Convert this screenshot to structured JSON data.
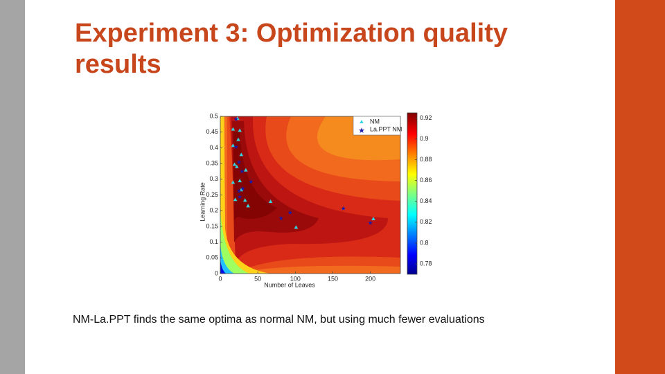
{
  "title": "Experiment 3: Optimization quality results",
  "caption": "NM-La.PPT finds the same optima as normal NM, but using much fewer evaluations",
  "chart_data": {
    "type": "scatter",
    "xlabel": "Number of Leaves",
    "ylabel": "Learning Rate",
    "xlim": [
      0,
      240
    ],
    "ylim": [
      0,
      0.5
    ],
    "xticks": [
      0,
      50,
      100,
      150,
      200
    ],
    "yticks": [
      0,
      0.05,
      0.1,
      0.15,
      0.2,
      0.25,
      0.3,
      0.35,
      0.4,
      0.45,
      0.5
    ],
    "legend": "top-right",
    "series": [
      {
        "name": "NM",
        "color": "#33d6e0",
        "marker": "triangle",
        "x": [
          23,
          17,
          26,
          24,
          17,
          28,
          19,
          22,
          34,
          17,
          26,
          28,
          20,
          33,
          37,
          67,
          101,
          204
        ],
        "values": [
          0.493,
          0.459,
          0.455,
          0.426,
          0.407,
          0.378,
          0.347,
          0.34,
          0.329,
          0.29,
          0.295,
          0.266,
          0.235,
          0.233,
          0.215,
          0.229,
          0.147,
          0.174
        ]
      },
      {
        "name": "La.PPT NM",
        "color": "#1a1aa8",
        "marker": "star",
        "x": [
          21,
          21,
          25,
          29,
          41,
          30,
          26,
          25,
          81,
          93,
          164,
          200
        ],
        "values": [
          0.491,
          0.403,
          0.354,
          0.325,
          0.292,
          0.27,
          0.244,
          0.262,
          0.176,
          0.194,
          0.207,
          0.161
        ]
      }
    ],
    "colorbar": {
      "lim": [
        0.77,
        0.925
      ],
      "ticks": [
        0.78,
        0.8,
        0.82,
        0.84,
        0.86,
        0.88,
        0.9,
        0.92
      ]
    }
  }
}
